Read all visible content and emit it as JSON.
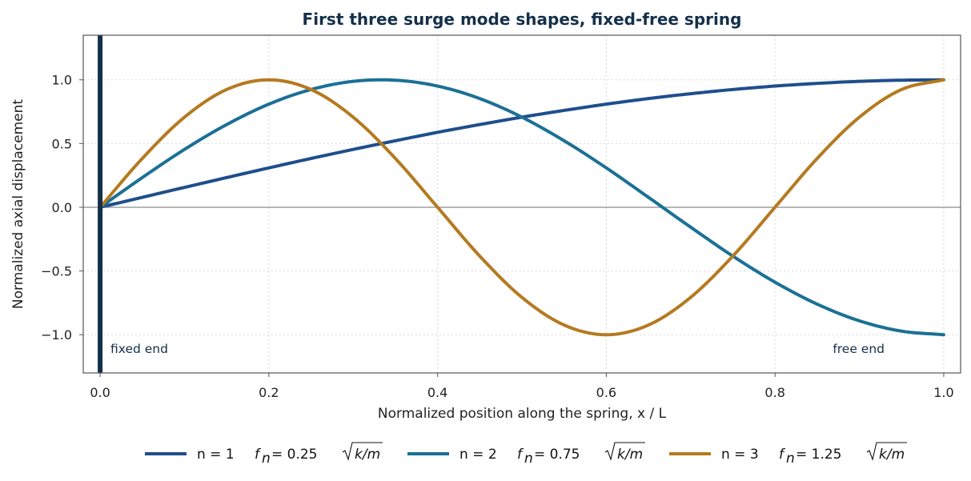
{
  "chart_data": {
    "type": "line",
    "title": "First three surge mode shapes, fixed-free spring",
    "xlabel": "Normalized position along the spring,  x / L",
    "ylabel": "Normalized axial displacement",
    "xlim": [
      -0.02,
      1.02
    ],
    "ylim": [
      -1.3,
      1.35
    ],
    "xticks": [
      0.0,
      0.2,
      0.4,
      0.6,
      0.8,
      1.0
    ],
    "xtick_labels": [
      "0.0",
      "0.2",
      "0.4",
      "0.6",
      "0.8",
      "1.0"
    ],
    "yticks": [
      -1.0,
      -0.5,
      0.0,
      0.5,
      1.0
    ],
    "ytick_labels": [
      "−1.0",
      "−0.5",
      "0.0",
      "0.5",
      "1.0"
    ],
    "grid": true,
    "legend_position": "bottom-center",
    "annotations": [
      "fixed end",
      "free end"
    ],
    "series": [
      {
        "name": "n = 1",
        "freq_label": "= 0.25",
        "color": "#1f4e8c",
        "x": [
          0.0,
          0.05,
          0.1,
          0.15,
          0.2,
          0.25,
          0.3,
          0.35,
          0.4,
          0.45,
          0.5,
          0.55,
          0.6,
          0.65,
          0.7,
          0.75,
          0.8,
          0.85,
          0.9,
          0.95,
          1.0
        ],
        "y": [
          0.0,
          0.078,
          0.156,
          0.233,
          0.309,
          0.383,
          0.454,
          0.522,
          0.588,
          0.649,
          0.707,
          0.76,
          0.809,
          0.853,
          0.891,
          0.924,
          0.951,
          0.972,
          0.988,
          0.997,
          1.0
        ]
      },
      {
        "name": "n = 2",
        "freq_label": "= 0.75",
        "color": "#1b7096",
        "x": [
          0.0,
          0.05,
          0.1,
          0.15,
          0.2,
          0.25,
          0.3,
          0.35,
          0.4,
          0.45,
          0.5,
          0.55,
          0.6,
          0.65,
          0.7,
          0.75,
          0.8,
          0.85,
          0.9,
          0.95,
          1.0
        ],
        "y": [
          0.0,
          0.233,
          0.454,
          0.649,
          0.809,
          0.924,
          0.988,
          0.997,
          0.951,
          0.853,
          0.707,
          0.522,
          0.309,
          0.078,
          -0.156,
          -0.383,
          -0.588,
          -0.76,
          -0.891,
          -0.972,
          -1.0
        ]
      },
      {
        "name": "n = 3",
        "freq_label": "= 1.25",
        "color": "#b57a20",
        "x": [
          0.0,
          0.05,
          0.1,
          0.15,
          0.2,
          0.25,
          0.3,
          0.35,
          0.4,
          0.45,
          0.5,
          0.55,
          0.6,
          0.65,
          0.7,
          0.75,
          0.8,
          0.85,
          0.9,
          0.95,
          1.0
        ],
        "y": [
          0.0,
          0.383,
          0.707,
          0.924,
          1.0,
          0.924,
          0.707,
          0.383,
          0.0,
          -0.383,
          -0.707,
          -0.924,
          -1.0,
          -0.924,
          -0.707,
          -0.383,
          0.0,
          0.383,
          0.707,
          0.924,
          1.0
        ]
      }
    ]
  }
}
